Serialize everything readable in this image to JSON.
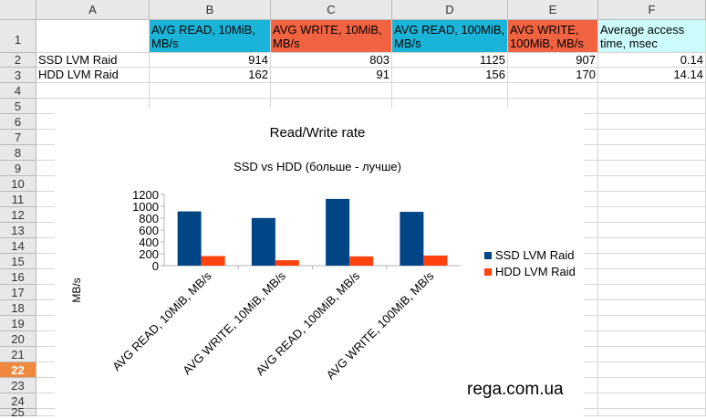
{
  "columns": [
    "A",
    "B",
    "C",
    "D",
    "E",
    "F"
  ],
  "rows": [
    "1",
    "2",
    "3",
    "4",
    "5",
    "6",
    "7",
    "8",
    "9",
    "10",
    "11",
    "12",
    "13",
    "14",
    "15",
    "16",
    "17",
    "18",
    "19",
    "20",
    "21",
    "22",
    "23",
    "24",
    "25"
  ],
  "selected_row": "22",
  "header_row": {
    "b": "AVG READ, 10MiB, MB/s",
    "c": "AVG WRITE, 10MiB, MB/s",
    "d": "AVG READ, 100MiB, MB/s",
    "e": "AVG WRITE, 100MiB, MB/s",
    "f": "Average access time, msec"
  },
  "data_rows": [
    {
      "a": "SSD LVM Raid",
      "b": "914",
      "c": "803",
      "d": "1125",
      "e": "907",
      "f": "0.14"
    },
    {
      "a": "HDD LVM Raid",
      "b": "162",
      "c": "91",
      "d": "156",
      "e": "170",
      "f": "14.14"
    }
  ],
  "colors": {
    "ssd": "#004586",
    "hdd": "#ff420e",
    "header_blue": "#1ab4d8",
    "header_orange": "#f26341",
    "header_cyan": "#ccfbfc"
  },
  "chart_data": {
    "type": "bar",
    "title": "Read/Write rate",
    "subtitle": "SSD vs HDD (больше - лучше)",
    "ylabel": "MB/s",
    "categories": [
      "AVG READ, 10MiB, MB/s",
      "AVG WRITE, 10MiB, MB/s",
      "AVG READ, 100MiB, MB/s",
      "AVG WRITE, 100MiB, MB/s"
    ],
    "series": [
      {
        "name": "SSD LVM Raid",
        "values": [
          914,
          803,
          1125,
          907
        ]
      },
      {
        "name": "HDD LVM Raid",
        "values": [
          162,
          91,
          156,
          170
        ]
      }
    ],
    "ylim": [
      0,
      1200
    ],
    "yticks": [
      0,
      200,
      400,
      600,
      800,
      1000,
      1200
    ],
    "legend_position": "right",
    "grid": false
  },
  "watermark": "rega.com.ua"
}
